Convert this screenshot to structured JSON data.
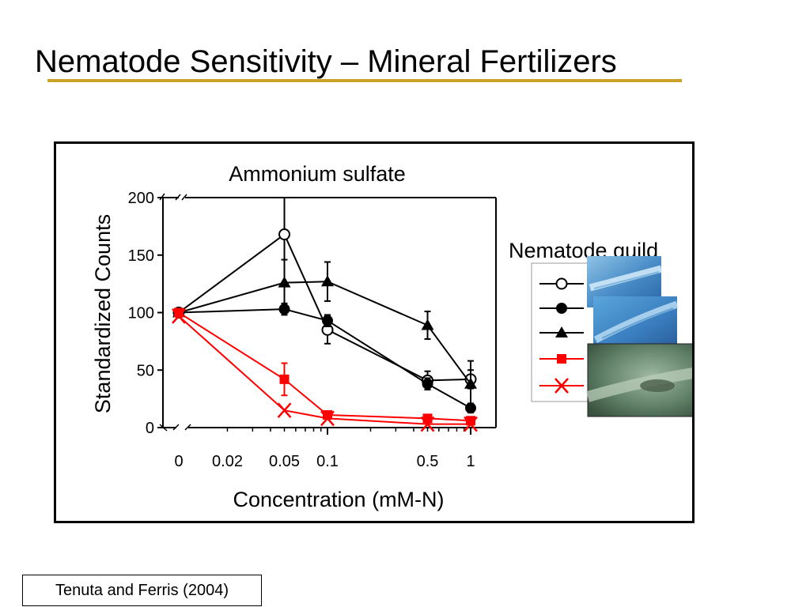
{
  "slide": {
    "title": "Nematode Sensitivity – Mineral Fertilizers",
    "accent_color": "#c9a227",
    "citation": "Tenuta and Ferris (2004)"
  },
  "chart_data": {
    "type": "line",
    "title": "Ammonium sulfate",
    "xlabel": "Concentration (mM-N)",
    "ylabel": "Standardized Counts",
    "x_scale": "log (with broken axis for 0)",
    "x_tick_labels": [
      "0",
      "0.02",
      "0.05",
      "0.1",
      "0.5",
      "1"
    ],
    "x_ticks": [
      0,
      0.02,
      0.05,
      0.1,
      0.5,
      1
    ],
    "y_ticks": [
      0,
      50,
      100,
      150,
      200
    ],
    "ylim": [
      0,
      200
    ],
    "legend_title": "Nematode guild",
    "legend_placement": "right",
    "legend_has_photos": true,
    "series": [
      {
        "marker": "open-circle",
        "color": "#000000",
        "x": [
          0,
          0.05,
          0.1,
          0.5,
          1
        ],
        "y": [
          100,
          168,
          85,
          41,
          42
        ],
        "err": [
          0,
          65,
          12,
          8,
          8
        ]
      },
      {
        "marker": "filled-circle",
        "color": "#000000",
        "x": [
          0,
          0.05,
          0.1,
          0.5,
          1
        ],
        "y": [
          100,
          103,
          93,
          38,
          17
        ],
        "err": [
          0,
          5,
          5,
          5,
          4
        ]
      },
      {
        "marker": "filled-triangle",
        "color": "#000000",
        "x": [
          0,
          0.05,
          0.1,
          0.5,
          1
        ],
        "y": [
          100,
          126,
          127,
          89,
          38
        ],
        "err": [
          0,
          20,
          17,
          12,
          20
        ]
      },
      {
        "marker": "filled-square",
        "color": "#ff0000",
        "x": [
          0,
          0.05,
          0.1,
          0.5,
          1
        ],
        "y": [
          100,
          42,
          11,
          8,
          6
        ],
        "err": [
          0,
          14,
          2,
          2,
          2
        ]
      },
      {
        "marker": "x-cross",
        "color": "#ff0000",
        "x": [
          0,
          0.05,
          0.1,
          0.5,
          1
        ],
        "y": [
          97,
          15,
          8,
          3,
          3
        ],
        "err": [
          0,
          0,
          0,
          0,
          0
        ]
      }
    ]
  }
}
